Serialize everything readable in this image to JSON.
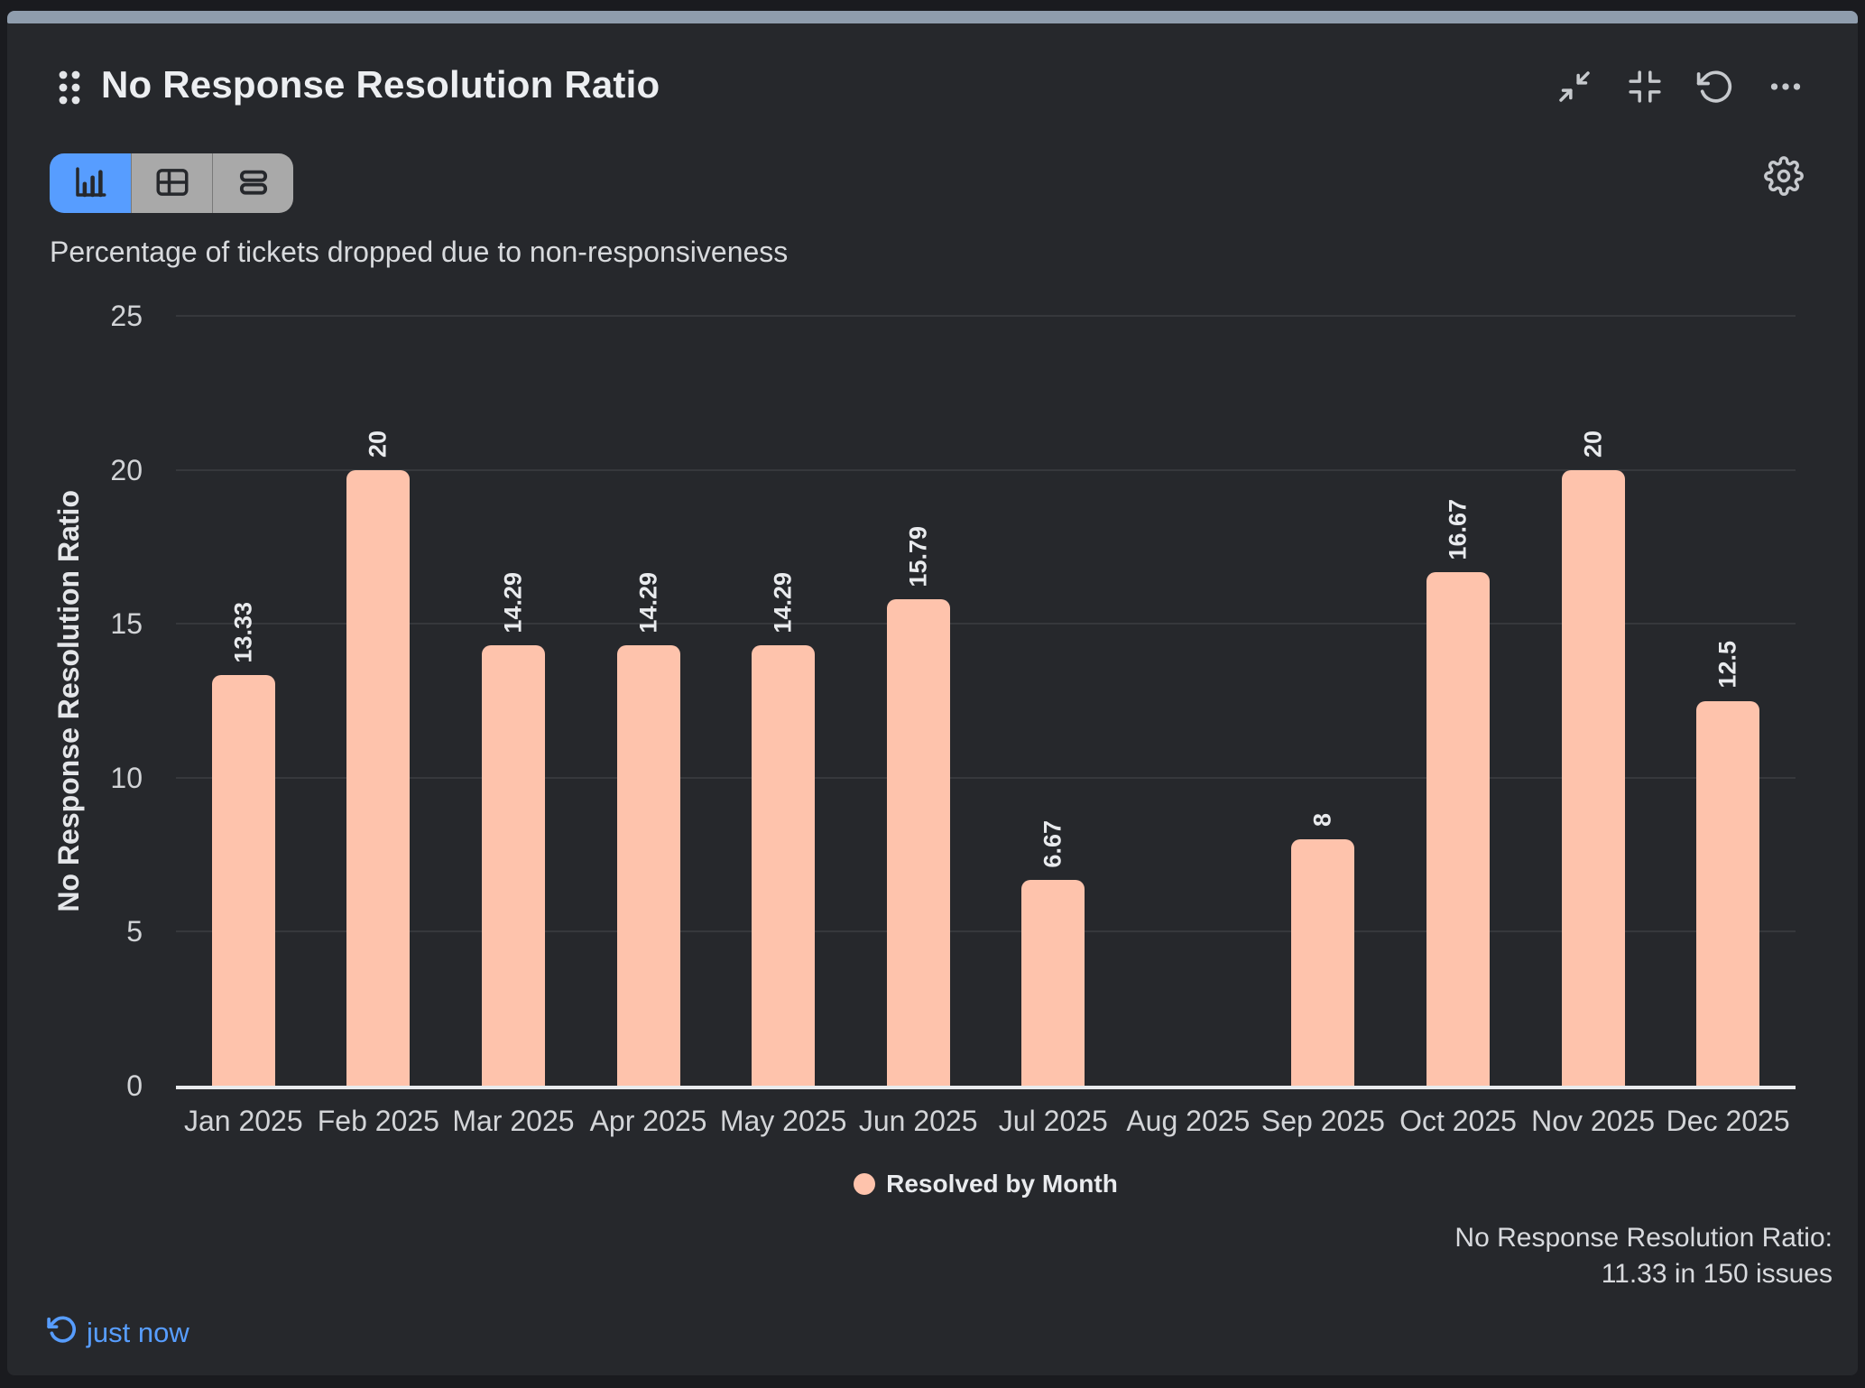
{
  "header": {
    "title": "No Response Resolution Ratio"
  },
  "toolbar": {
    "active_view": "chart",
    "view_modes": [
      "chart",
      "table",
      "rows"
    ]
  },
  "subtitle": "Percentage of tickets dropped due to non-responsiveness",
  "chart_data": {
    "type": "bar",
    "title": "No Response Resolution Ratio",
    "categories": [
      "Jan 2025",
      "Feb 2025",
      "Mar 2025",
      "Apr 2025",
      "May 2025",
      "Jun 2025",
      "Jul 2025",
      "Aug 2025",
      "Sep 2025",
      "Oct 2025",
      "Nov 2025",
      "Dec 2025"
    ],
    "series": [
      {
        "name": "Resolved by Month",
        "values": [
          13.33,
          20,
          14.29,
          14.29,
          14.29,
          15.79,
          6.67,
          0,
          8,
          16.67,
          20,
          12.5
        ],
        "labels": [
          "13.33",
          "20",
          "14.29",
          "14.29",
          "14.29",
          "15.79",
          "6.67",
          "",
          "8",
          "16.67",
          "20",
          "12.5"
        ],
        "color": "#fec3ac"
      }
    ],
    "xlabel": "",
    "ylabel": "No Response Resolution Ratio",
    "ylim": [
      0,
      25
    ],
    "yticks": [
      0,
      5,
      10,
      15,
      20,
      25
    ],
    "grid": true,
    "legend_position": "bottom",
    "value_label_rotation": -90
  },
  "summary": {
    "line1": "No Response Resolution Ratio:",
    "line2": "11.33 in 150 issues"
  },
  "refresh": {
    "last_refreshed": "just now"
  },
  "icons": {
    "drag_handle": "six-dots-grid",
    "collapse": "arrows-inward-diagonal",
    "contract": "corners-inward",
    "reload": "rotate-ccw-arrow",
    "more": "ellipsis-horizontal",
    "settings": "gear",
    "view_chart": "bar-chart",
    "view_table": "table-grid",
    "view_rows": "stacked-rows",
    "refresh_status": "rotate-ccw-arrow"
  },
  "colors": {
    "accent_blue": "#579dff",
    "bar_fill": "#fec3ac",
    "top_bar": "#8f9dad",
    "card_background": "#26282c",
    "toolbar_inactive": "#a9a9a9"
  }
}
